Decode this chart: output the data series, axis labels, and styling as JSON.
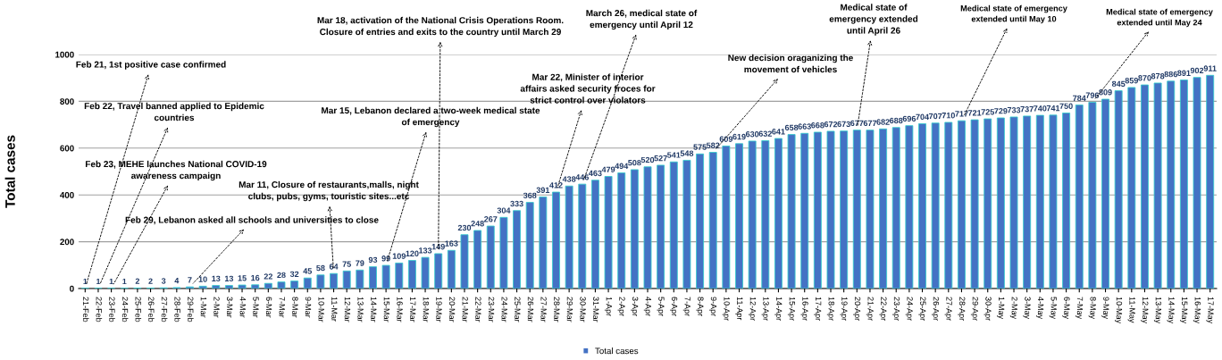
{
  "chart_data": {
    "type": "bar",
    "ylabel": "Total cases",
    "categories": [
      "21-Feb",
      "22-Feb",
      "23-Feb",
      "24-Feb",
      "25-Feb",
      "26-Feb",
      "27-Feb",
      "28-Feb",
      "29-Feb",
      "1-Mar",
      "2-Mar",
      "3-Mar",
      "4-Mar",
      "5-Mar",
      "6-Mar",
      "7-Mar",
      "8-Mar",
      "9-Mar",
      "10-Mar",
      "11-Mar",
      "12-Mar",
      "13-Mar",
      "14-Mar",
      "15-Mar",
      "16-Mar",
      "17-Mar",
      "18-Mar",
      "19-Mar",
      "20-Mar",
      "21-Mar",
      "22-Mar",
      "23-Mar",
      "24-Mar",
      "25-Mar",
      "26-Mar",
      "27-Mar",
      "28-Mar",
      "29-Mar",
      "30-Mar",
      "31-Mar",
      "1-Apr",
      "2-Apr",
      "3-Apr",
      "4-Apr",
      "5-Apr",
      "6-Apr",
      "7-Apr",
      "8-Apr",
      "9-Apr",
      "10-Apr",
      "11-Apr",
      "12-Apr",
      "13-Apr",
      "14-Apr",
      "15-Apr",
      "16-Apr",
      "17-Apr",
      "18-Apr",
      "19-Apr",
      "20-Apr",
      "21-Apr",
      "22-Apr",
      "23-Apr",
      "24-Apr",
      "25-Apr",
      "26-Apr",
      "27-Apr",
      "28-Apr",
      "29-Apr",
      "30-Apr",
      "1-May",
      "2-May",
      "3-May",
      "4-May",
      "5-May",
      "6-May",
      "7-May",
      "8-May",
      "9-May",
      "10-May",
      "11-May",
      "12-May",
      "13-May",
      "14-May",
      "15-May",
      "16-May",
      "17-May"
    ],
    "series": [
      {
        "name": "Total cases",
        "color": "#4472c4",
        "values": [
          1,
          1,
          1,
          1,
          2,
          2,
          3,
          4,
          7,
          10,
          13,
          13,
          15,
          16,
          22,
          28,
          32,
          45,
          58,
          64,
          75,
          79,
          93,
          99,
          109,
          120,
          133,
          149,
          163,
          230,
          248,
          267,
          304,
          333,
          368,
          391,
          412,
          438,
          446,
          463,
          479,
          494,
          508,
          520,
          527,
          541,
          548,
          575,
          582,
          609,
          619,
          630,
          632,
          641,
          658,
          663,
          668,
          672,
          673,
          677,
          677,
          682,
          688,
          696,
          704,
          707,
          710,
          717,
          721,
          725,
          729,
          733,
          737,
          740,
          741,
          750,
          784,
          796,
          809,
          845,
          859,
          870,
          878,
          886,
          891,
          902,
          911
        ]
      }
    ],
    "ylim": [
      0,
      1000
    ],
    "yticks": [
      0,
      200,
      400,
      600,
      800,
      1000
    ],
    "grid": "y",
    "legend": "bottom",
    "data_labels": true,
    "annotations": [
      {
        "text": "Feb 21, 1st positive case confirmed",
        "x": "21-Feb",
        "y": 1
      },
      {
        "text": "Feb 22, Travel banned applied to Epidemic\ncountries",
        "x": "22-Feb",
        "y": 1
      },
      {
        "text": "Feb 23, MEHE launches National COVID-19\nawareness campaign",
        "x": "23-Feb",
        "y": 1
      },
      {
        "text": "Feb 29, Lebanon asked all schools and universities to close",
        "x": "29-Feb",
        "y": 7
      },
      {
        "text": "Mar 11, Closure of restaurants,malls, night\nclubs, pubs, gyms, touristic sites...etc",
        "x": "11-Mar",
        "y": 64
      },
      {
        "text": "Mar 15, Lebanon declared a two-week medical state\nof emergency",
        "x": "15-Mar",
        "y": 99
      },
      {
        "text": "Mar 18, activation of the National Crisis Operations Room.\nClosure of entries and exits to the country until March 29",
        "x": "19-Mar",
        "y": 149
      },
      {
        "text": "Mar 22, Minister of interior\naffairs asked security froces for\nstrict control over violators",
        "x": "28-Mar",
        "y": 412
      },
      {
        "text": "March 26, medical state of\nemergency until April 12",
        "x": "30-Mar",
        "y": 446
      },
      {
        "text": "New decision oraganizing the\nmovement of vehicles",
        "x": "9-Apr",
        "y": 582
      },
      {
        "text": "Medical state of\nemergency extended\nuntil April 26",
        "x": "20-Apr",
        "y": 677
      },
      {
        "text": "Medical state of emergency\nextended until May 10",
        "x": "28-Apr",
        "y": 717
      },
      {
        "text": "Medical state of emergency\nextended until May 24",
        "x": "8-May",
        "y": 796
      }
    ]
  }
}
